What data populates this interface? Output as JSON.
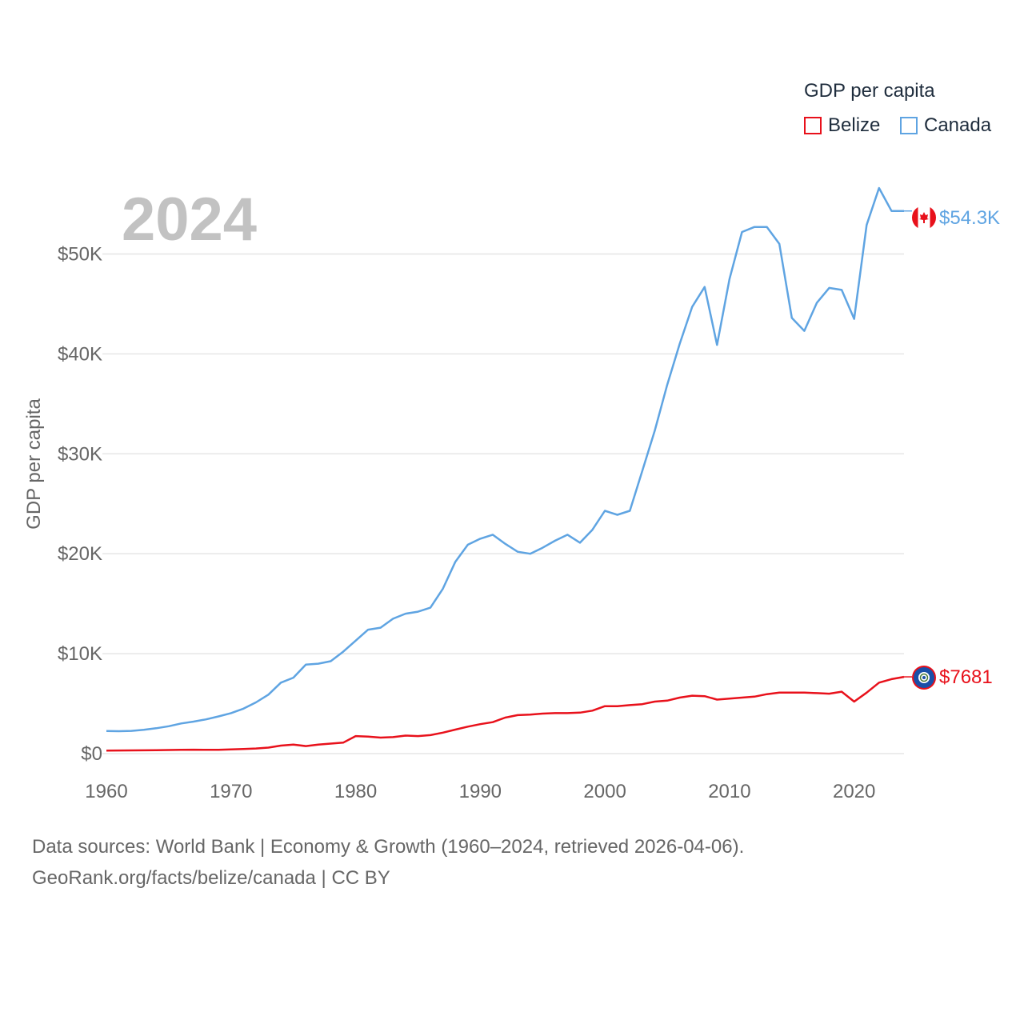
{
  "legend": {
    "title": "GDP per capita",
    "items": [
      {
        "label": "Belize",
        "color": "#e8111b"
      },
      {
        "label": "Canada",
        "color": "#5fa4e2"
      }
    ]
  },
  "year_label": "2024",
  "end_labels": {
    "canada": "$54.3K",
    "belize": "$7681"
  },
  "source": {
    "line1": "Data sources: World Bank | Economy & Growth (1960–2024, retrieved 2026-04-06).",
    "line2": "GeoRank.org/facts/belize/canada | CC BY"
  },
  "chart_data": {
    "type": "line",
    "title": "",
    "xlabel": "",
    "ylabel": "GDP per capita",
    "xlim": [
      1960,
      2024
    ],
    "ylim": [
      0,
      57000
    ],
    "x_ticks": [
      1960,
      1970,
      1980,
      1990,
      2000,
      2010,
      2020
    ],
    "y_ticks": [
      {
        "value": 0,
        "label": "$0"
      },
      {
        "value": 10000,
        "label": "$10K"
      },
      {
        "value": 20000,
        "label": "$20K"
      },
      {
        "value": 30000,
        "label": "$30K"
      },
      {
        "value": 40000,
        "label": "$40K"
      },
      {
        "value": 50000,
        "label": "$50K"
      }
    ],
    "x": [
      1960,
      1961,
      1962,
      1963,
      1964,
      1965,
      1966,
      1967,
      1968,
      1969,
      1970,
      1971,
      1972,
      1973,
      1974,
      1975,
      1976,
      1977,
      1978,
      1979,
      1980,
      1981,
      1982,
      1983,
      1984,
      1985,
      1986,
      1987,
      1988,
      1989,
      1990,
      1991,
      1992,
      1993,
      1994,
      1995,
      1996,
      1997,
      1998,
      1999,
      2000,
      2001,
      2002,
      2003,
      2004,
      2005,
      2006,
      2007,
      2008,
      2009,
      2010,
      2011,
      2012,
      2013,
      2014,
      2015,
      2016,
      2017,
      2018,
      2019,
      2020,
      2021,
      2022,
      2023,
      2024
    ],
    "series": [
      {
        "name": "Canada",
        "color": "#5fa4e2",
        "values": [
          2260,
          2240,
          2270,
          2380,
          2540,
          2740,
          3020,
          3200,
          3430,
          3720,
          4050,
          4500,
          5120,
          5900,
          7100,
          7600,
          8900,
          9000,
          9250,
          10200,
          11300,
          12400,
          12600,
          13500,
          14000,
          14200,
          14600,
          16500,
          19200,
          20900,
          21500,
          21900,
          21000,
          20200,
          20000,
          20600,
          21300,
          21900,
          21100,
          22400,
          24300,
          23900,
          24300,
          28300,
          32300,
          36900,
          41000,
          44700,
          46700,
          40900,
          47500,
          52200,
          52700,
          52700,
          51000,
          43600,
          42300,
          45100,
          46600,
          46400,
          43500,
          52900,
          56600,
          54300,
          54300
        ]
      },
      {
        "name": "Belize",
        "color": "#e8111b",
        "values": [
          300,
          310,
          320,
          330,
          340,
          360,
          380,
          390,
          380,
          380,
          420,
          460,
          510,
          600,
          800,
          900,
          750,
          900,
          1000,
          1100,
          1750,
          1700,
          1600,
          1650,
          1800,
          1750,
          1850,
          2100,
          2400,
          2700,
          2950,
          3150,
          3600,
          3850,
          3900,
          4000,
          4050,
          4050,
          4100,
          4300,
          4750,
          4750,
          4850,
          4950,
          5200,
          5300,
          5600,
          5800,
          5750,
          5400,
          5500,
          5600,
          5700,
          5950,
          6100,
          6100,
          6100,
          6050,
          6000,
          6200,
          5200,
          6100,
          7100,
          7450,
          7681
        ]
      }
    ]
  }
}
